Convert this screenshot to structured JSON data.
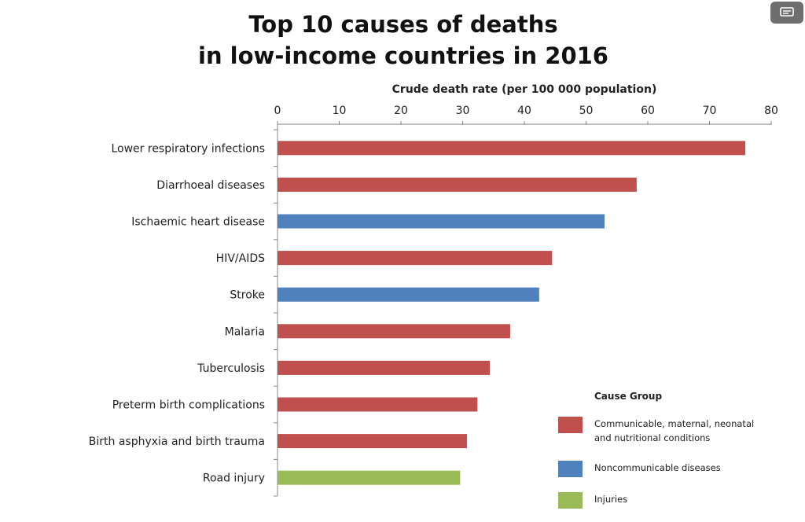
{
  "chart_data": {
    "type": "bar",
    "orientation": "horizontal",
    "title": [
      "Top 10 causes of deaths",
      "in low-income countries in 2016"
    ],
    "xlabel": "Crude death rate (per 100 000 population)",
    "xlim": [
      0,
      80
    ],
    "xticks": [
      0,
      10,
      20,
      30,
      40,
      50,
      60,
      70,
      80
    ],
    "axis_position": "top",
    "grid": false,
    "categories": [
      "Lower respiratory infections",
      "Diarrhoeal diseases",
      "Ischaemic heart disease",
      "HIV/AIDS",
      "Stroke",
      "Malaria",
      "Tuberculosis",
      "Preterm birth complications",
      "Birth asphyxia and birth trauma",
      "Road injury"
    ],
    "values": [
      75.8,
      58.2,
      53.0,
      44.5,
      42.4,
      37.7,
      34.4,
      32.4,
      30.7,
      29.6
    ],
    "groups": [
      0,
      0,
      1,
      0,
      1,
      0,
      0,
      0,
      0,
      2
    ],
    "legend": {
      "title": "Cause Group",
      "placement": "bottom-right",
      "entries": [
        {
          "label": [
            "Communicable, maternal, neonatal",
            "and nutritional conditions"
          ],
          "color": "#c0504d"
        },
        {
          "label": [
            "Noncommunicable diseases"
          ],
          "color": "#4f81bd"
        },
        {
          "label": [
            "Injuries"
          ],
          "color": "#9bbb59"
        }
      ]
    }
  },
  "ui": {
    "corner_icon": "captions-icon"
  }
}
